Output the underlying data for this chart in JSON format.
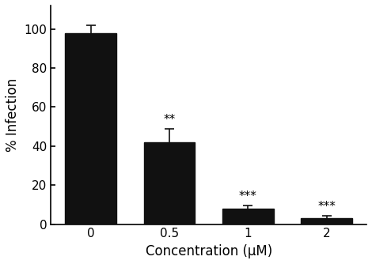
{
  "categories": [
    "0",
    "0.5",
    "1",
    "2"
  ],
  "x_positions": [
    0,
    1,
    2,
    3
  ],
  "values": [
    98,
    42,
    8,
    3
  ],
  "errors": [
    4,
    7,
    1.5,
    1.5
  ],
  "bar_color": "#111111",
  "bar_width": 0.65,
  "significance": [
    "",
    "**",
    "***",
    "***"
  ],
  "sig_fontsize": 11,
  "xlabel": "Concentration (μM)",
  "ylabel": "% Infection",
  "ylim": [
    0,
    112
  ],
  "yticks": [
    0,
    20,
    40,
    60,
    80,
    100
  ],
  "xtick_labels": [
    "0",
    "0.5",
    "1",
    "2"
  ],
  "xlabel_fontsize": 12,
  "ylabel_fontsize": 12,
  "tick_fontsize": 11,
  "error_capsize": 4,
  "error_linewidth": 1.2,
  "error_color": "#111111",
  "spine_linewidth": 1.2
}
